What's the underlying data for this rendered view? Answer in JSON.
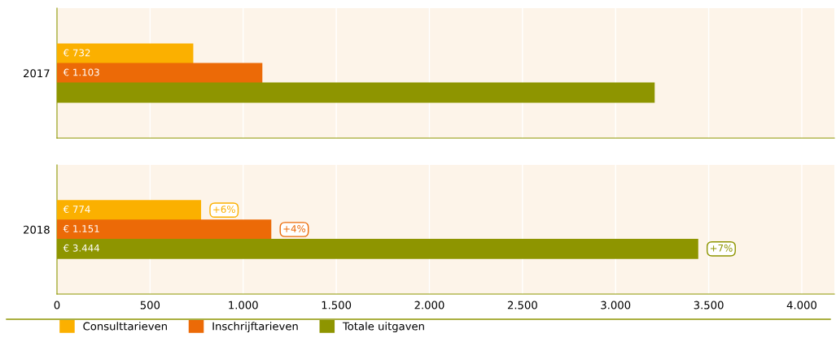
{
  "chart_data": [
    {
      "type": "bar",
      "orientation": "horizontal",
      "categories": [
        "2017"
      ],
      "xlim": [
        0,
        4175
      ],
      "xticks": [
        {
          "value": 0,
          "label": null
        },
        {
          "value": 500,
          "label": null
        },
        {
          "value": 1000,
          "label": null
        },
        {
          "value": 1500,
          "label": null
        },
        {
          "value": 2000,
          "label": null
        },
        {
          "value": 2500,
          "label": null
        },
        {
          "value": 3000,
          "label": null
        },
        {
          "value": 3500,
          "label": null
        },
        {
          "value": 4000,
          "label": null
        }
      ],
      "grid": "x",
      "tick_labels": "y",
      "series": [
        {
          "color": "#fbb000",
          "values": [
            732
          ],
          "value_labels": [
            "€ 732"
          ]
        },
        {
          "color": "#ec6a07",
          "values": [
            1103
          ],
          "value_labels": [
            "€ 1.103"
          ]
        },
        {
          "color": "#8e9500",
          "values": [
            3210
          ],
          "value_labels": [
            null
          ]
        }
      ]
    },
    {
      "type": "bar",
      "orientation": "horizontal",
      "categories": [
        "2018"
      ],
      "xlim": [
        0,
        4175
      ],
      "xticks": [
        {
          "value": 0,
          "label": "0"
        },
        {
          "value": 500,
          "label": "500"
        },
        {
          "value": 1000,
          "label": "1.000"
        },
        {
          "value": 1500,
          "label": "1.500"
        },
        {
          "value": 2000,
          "label": "2.000"
        },
        {
          "value": 2500,
          "label": "2.500"
        },
        {
          "value": 3000,
          "label": "3.000"
        },
        {
          "value": 3500,
          "label": "3.500"
        },
        {
          "value": 4000,
          "label": "4.000"
        }
      ],
      "grid": "x",
      "legend": "bottom",
      "series": [
        {
          "name": "Consulttarieven",
          "color": "#fbb000",
          "values": [
            774
          ],
          "value_labels": [
            "€ 774"
          ]
        },
        {
          "name": "Inschrijftarieven",
          "color": "#ec6a07",
          "values": [
            1151
          ],
          "value_labels": [
            "€ 1.151"
          ]
        },
        {
          "name": "Totale uitgaven",
          "color": "#8e9500",
          "values": [
            3444
          ],
          "value_labels": [
            "€ 3.444"
          ]
        }
      ],
      "annotations": [
        "+6%",
        "+4%",
        "+7%"
      ]
    }
  ]
}
